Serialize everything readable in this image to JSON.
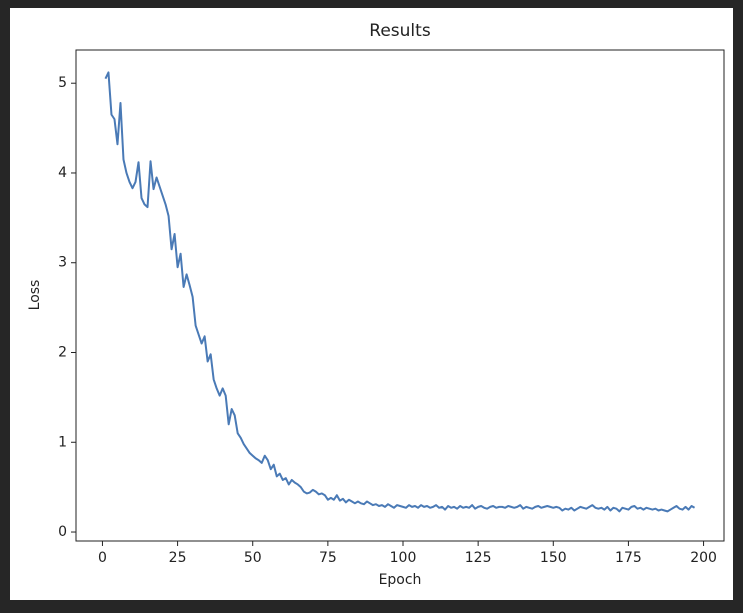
{
  "chart_data": {
    "type": "line",
    "title": "Results",
    "x_label": "Epoch",
    "y_label": "Loss",
    "x": [
      1,
      2,
      3,
      4,
      5,
      6,
      7,
      8,
      9,
      10,
      11,
      12,
      13,
      14,
      15,
      16,
      17,
      18,
      19,
      20,
      21,
      22,
      23,
      24,
      25,
      26,
      27,
      28,
      29,
      30,
      31,
      32,
      33,
      34,
      35,
      36,
      37,
      38,
      39,
      40,
      41,
      42,
      43,
      44,
      45,
      46,
      47,
      48,
      49,
      50,
      51,
      52,
      53,
      54,
      55,
      56,
      57,
      58,
      59,
      60,
      61,
      62,
      63,
      64,
      65,
      66,
      67,
      68,
      69,
      70,
      71,
      72,
      73,
      74,
      75,
      76,
      77,
      78,
      79,
      80,
      81,
      82,
      83,
      84,
      85,
      86,
      87,
      88,
      89,
      90,
      91,
      92,
      93,
      94,
      95,
      96,
      97,
      98,
      99,
      100,
      101,
      102,
      103,
      104,
      105,
      106,
      107,
      108,
      109,
      110,
      111,
      112,
      113,
      114,
      115,
      116,
      117,
      118,
      119,
      120,
      121,
      122,
      123,
      124,
      125,
      126,
      127,
      128,
      129,
      130,
      131,
      132,
      133,
      134,
      135,
      136,
      137,
      138,
      139,
      140,
      141,
      142,
      143,
      144,
      145,
      146,
      147,
      148,
      149,
      150,
      151,
      152,
      153,
      154,
      155,
      156,
      157,
      158,
      159,
      160,
      161,
      162,
      163,
      164,
      165,
      166,
      167,
      168,
      169,
      170,
      171,
      172,
      173,
      174,
      175,
      176,
      177,
      178,
      179,
      180,
      181,
      182,
      183,
      184,
      185,
      186,
      187,
      188,
      189,
      190,
      191,
      192,
      193,
      194,
      195,
      196,
      197
    ],
    "values": [
      5.05,
      5.12,
      4.65,
      4.6,
      4.32,
      4.78,
      4.15,
      4.0,
      3.9,
      3.83,
      3.9,
      4.12,
      3.72,
      3.65,
      3.62,
      4.13,
      3.82,
      3.95,
      3.85,
      3.75,
      3.65,
      3.52,
      3.15,
      3.32,
      2.95,
      3.1,
      2.73,
      2.87,
      2.75,
      2.62,
      2.3,
      2.2,
      2.1,
      2.18,
      1.9,
      1.98,
      1.7,
      1.6,
      1.52,
      1.6,
      1.52,
      1.2,
      1.37,
      1.3,
      1.1,
      1.05,
      0.98,
      0.93,
      0.88,
      0.85,
      0.82,
      0.8,
      0.77,
      0.85,
      0.8,
      0.7,
      0.75,
      0.62,
      0.65,
      0.58,
      0.6,
      0.53,
      0.58,
      0.55,
      0.53,
      0.5,
      0.45,
      0.43,
      0.44,
      0.47,
      0.45,
      0.42,
      0.43,
      0.41,
      0.36,
      0.38,
      0.36,
      0.41,
      0.35,
      0.37,
      0.33,
      0.36,
      0.34,
      0.32,
      0.34,
      0.32,
      0.31,
      0.34,
      0.32,
      0.3,
      0.31,
      0.29,
      0.3,
      0.28,
      0.31,
      0.29,
      0.27,
      0.3,
      0.29,
      0.28,
      0.27,
      0.3,
      0.28,
      0.29,
      0.27,
      0.3,
      0.28,
      0.29,
      0.27,
      0.28,
      0.3,
      0.27,
      0.28,
      0.25,
      0.29,
      0.27,
      0.28,
      0.26,
      0.29,
      0.27,
      0.28,
      0.27,
      0.3,
      0.26,
      0.28,
      0.29,
      0.27,
      0.26,
      0.28,
      0.29,
      0.27,
      0.28,
      0.28,
      0.27,
      0.29,
      0.28,
      0.27,
      0.28,
      0.3,
      0.26,
      0.28,
      0.27,
      0.26,
      0.28,
      0.29,
      0.27,
      0.28,
      0.29,
      0.28,
      0.27,
      0.28,
      0.27,
      0.24,
      0.26,
      0.25,
      0.27,
      0.24,
      0.26,
      0.28,
      0.27,
      0.26,
      0.28,
      0.3,
      0.27,
      0.26,
      0.27,
      0.25,
      0.28,
      0.24,
      0.27,
      0.26,
      0.23,
      0.27,
      0.26,
      0.25,
      0.28,
      0.29,
      0.26,
      0.27,
      0.25,
      0.27,
      0.26,
      0.25,
      0.26,
      0.24,
      0.25,
      0.24,
      0.23,
      0.25,
      0.27,
      0.29,
      0.26,
      0.25,
      0.28,
      0.25,
      0.29,
      0.27
    ],
    "color": "#4a7ab6",
    "xlim": [
      -8.8,
      206.8
    ],
    "xticks": [
      0,
      25,
      50,
      75,
      100,
      125,
      150,
      175,
      200
    ],
    "ylim": [
      -0.1,
      5.37
    ],
    "yticks": [
      0,
      1,
      2,
      3,
      4,
      5
    ]
  }
}
